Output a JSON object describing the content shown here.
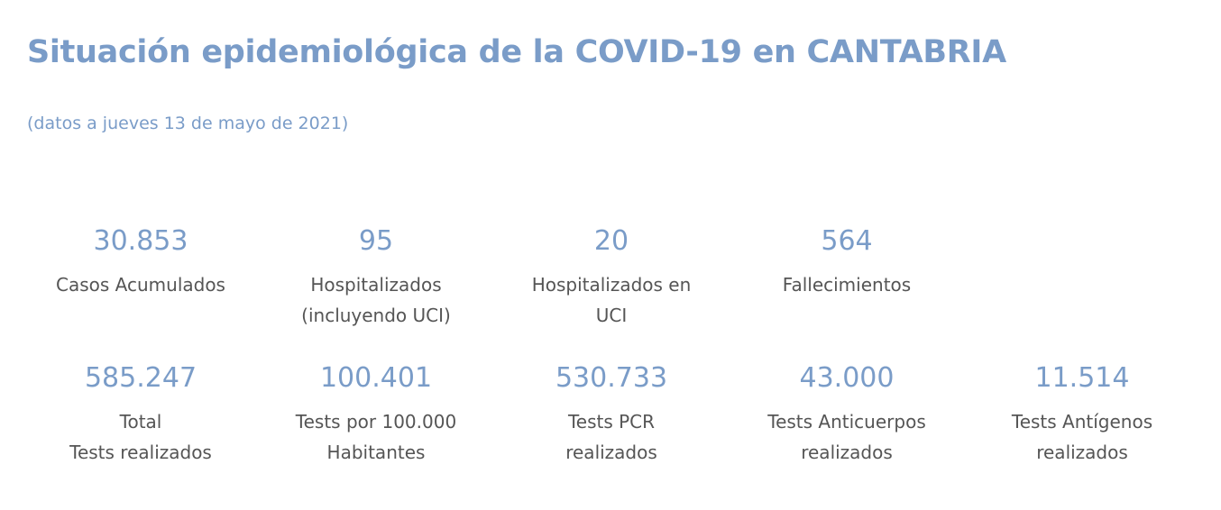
{
  "title": "Situación epidemiológica de la COVID-19 en CANTABRIA",
  "subtitle": "(datos a jueves 13 de mayo de 2021)",
  "row1": [
    {
      "value": "30.853",
      "label1": "Casos Acumulados",
      "label2": ""
    },
    {
      "value": "95",
      "label1": "Hospitalizados",
      "label2": "(incluyendo UCI)"
    },
    {
      "value": "20",
      "label1": "Hospitalizados en",
      "label2": "UCI"
    },
    {
      "value": "564",
      "label1": "Fallecimientos",
      "label2": ""
    }
  ],
  "row2": [
    {
      "value": "585.247",
      "label1": "Total",
      "label2": "Tests realizados"
    },
    {
      "value": "100.401",
      "label1": "Tests por 100.000",
      "label2": "Habitantes"
    },
    {
      "value": "530.733",
      "label1": "Tests PCR",
      "label2": "realizados"
    },
    {
      "value": "43.000",
      "label1": "Tests Anticuerpos",
      "label2": "realizados"
    },
    {
      "value": "11.514",
      "label1": "Tests Antígenos",
      "label2": "realizados"
    }
  ]
}
